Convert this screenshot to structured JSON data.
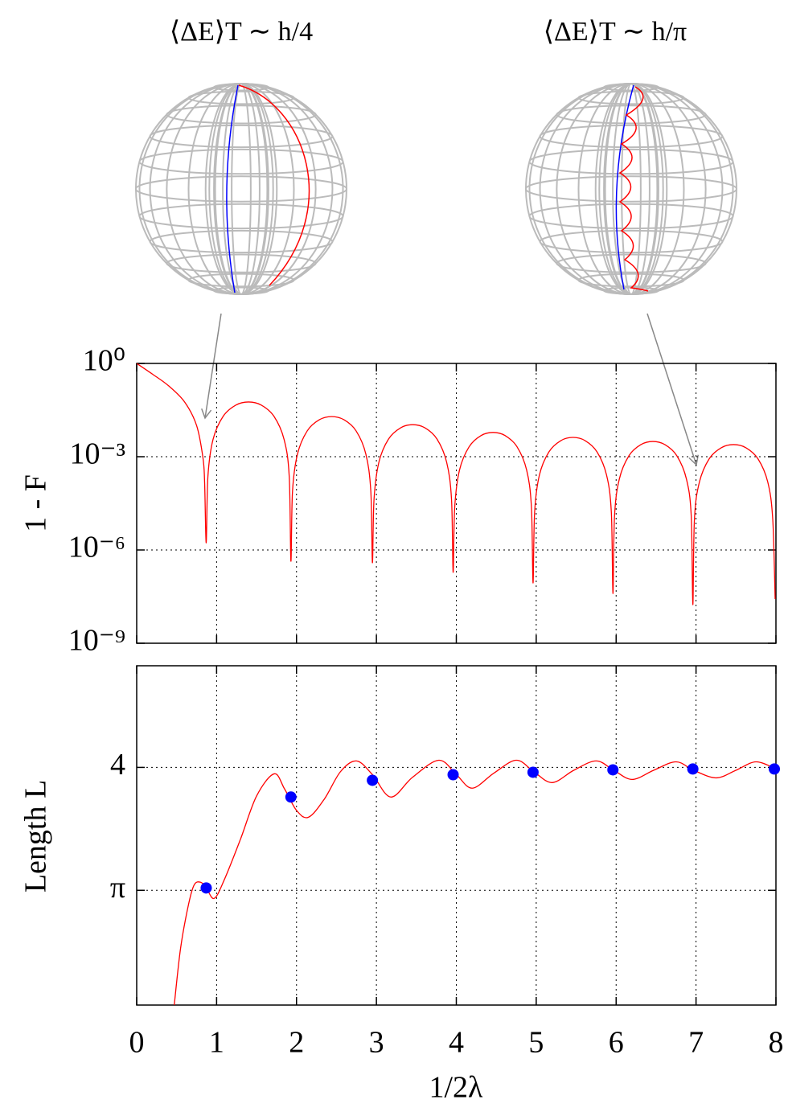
{
  "chart_data": [
    {
      "type": "line",
      "annotations": [
        "⟨ΔE⟩T ∼ h/4",
        "⟨ΔE⟩T ∼ h/π"
      ],
      "ylabel": "1 - F",
      "xlim": [
        0,
        8
      ],
      "ylim": [
        1e-09,
        1
      ],
      "yscale": "log",
      "yticks": [
        {
          "value": 1,
          "label": "10⁰"
        },
        {
          "value": 0.001,
          "label": "10⁻³"
        },
        {
          "value": 1e-06,
          "label": "10⁻⁶"
        },
        {
          "value": 1e-09,
          "label": "10⁻⁹"
        }
      ],
      "grid": true,
      "series": [
        {
          "type": "line",
          "color": "#ff0000",
          "x": [
            0,
            0.2,
            0.4,
            0.6,
            0.75,
            0.83,
            0.85,
            0.87,
            0.891,
            0.955,
            1.082,
            1.241,
            1.4,
            1.559,
            1.718,
            1.845,
            1.909,
            1.93,
            1.95,
            2.012,
            2.134,
            2.287,
            2.44,
            2.593,
            2.746,
            2.868,
            2.93,
            2.95,
            2.97,
            3.031,
            3.152,
            3.304,
            3.455,
            3.607,
            3.758,
            3.879,
            3.94,
            3.96,
            3.98,
            4.04,
            4.16,
            4.31,
            4.46,
            4.61,
            4.76,
            4.88,
            4.94,
            4.96,
            4.98,
            5.04,
            5.16,
            5.31,
            5.46,
            5.61,
            5.76,
            5.88,
            5.94,
            5.96,
            5.98,
            6.04,
            6.16,
            6.31,
            6.46,
            6.61,
            6.76,
            6.88,
            6.94,
            6.96,
            6.98,
            7.042,
            7.164,
            7.317,
            7.47,
            7.623,
            7.776,
            7.898,
            7.96,
            7.99
          ],
          "values": [
            1,
            0.447,
            0.19,
            0.0575,
            0.01,
            0.00089,
            0.00015,
            1.7e-06,
            0.000227,
            0.00356,
            0.0199,
            0.0457,
            0.0575,
            0.0457,
            0.0199,
            0.00356,
            0.000227,
            4.37e-07,
            7.69e-05,
            0.00121,
            0.00675,
            0.0155,
            0.0195,
            0.0155,
            0.00675,
            0.00121,
            7.69e-05,
            3.89e-07,
            4.23e-05,
            0.000664,
            0.00371,
            0.00851,
            0.0107,
            0.00851,
            0.00371,
            0.000664,
            4.23e-05,
            1.91e-07,
            2.38e-05,
            0.000373,
            0.00208,
            0.00479,
            0.00603,
            0.00479,
            0.00208,
            0.000373,
            2.38e-05,
            8.71e-08,
            1.64e-05,
            0.000258,
            0.00144,
            0.00331,
            0.00417,
            0.00331,
            0.00144,
            0.000258,
            1.64e-05,
            3.98e-08,
            1.22e-05,
            0.000191,
            0.00107,
            0.00245,
            0.00309,
            0.00245,
            0.00107,
            0.000191,
            1.22e-05,
            1.74e-08,
            9.68e-06,
            0.000152,
            0.000849,
            0.00195,
            0.00245,
            0.00195,
            0.000849,
            0.000152,
            9.68e-06,
            2.63e-08
          ]
        }
      ]
    },
    {
      "type": "line",
      "ylabel": "Length L",
      "xlabel": "1/2λ",
      "xlim": [
        0,
        8
      ],
      "xticks": [
        0,
        1,
        2,
        3,
        4,
        5,
        6,
        7,
        8
      ],
      "ylim": [
        2.34,
        4.71
      ],
      "yticks": [
        {
          "value": 3.14159,
          "label": "π"
        },
        4
      ],
      "grid": true,
      "series": [
        {
          "type": "line",
          "color": "#ff0000",
          "x": [
            0.47,
            0.55,
            0.65,
            0.72,
            0.8,
            0.87,
            0.97,
            1.1,
            1.3,
            1.5,
            1.72,
            1.85,
            2.0,
            2.15,
            2.35,
            2.55,
            2.75,
            2.95,
            3.18,
            3.45,
            3.78,
            4.0,
            4.2,
            4.47,
            4.75,
            4.97,
            5.2,
            5.47,
            5.75,
            5.97,
            6.2,
            6.47,
            6.75,
            6.97,
            7.25,
            7.5,
            7.75,
            8.0
          ],
          "values": [
            2.34,
            2.74,
            3.046,
            3.18,
            3.198,
            3.16,
            3.085,
            3.22,
            3.5,
            3.8,
            3.955,
            3.85,
            3.7,
            3.652,
            3.78,
            3.97,
            4.045,
            3.95,
            3.793,
            3.93,
            4.05,
            3.95,
            3.855,
            3.96,
            4.05,
            3.97,
            3.894,
            3.98,
            4.045,
            3.98,
            3.916,
            3.98,
            4.039,
            3.98,
            3.927,
            3.98,
            4.039,
            3.989
          ]
        },
        {
          "type": "scatter",
          "color": "#0000ff",
          "x": [
            0.87,
            1.93,
            2.95,
            3.96,
            4.96,
            5.96,
            6.96,
            7.98
          ],
          "values": [
            3.158,
            3.793,
            3.91,
            3.949,
            3.966,
            3.983,
            3.989,
            3.989
          ]
        }
      ]
    }
  ]
}
